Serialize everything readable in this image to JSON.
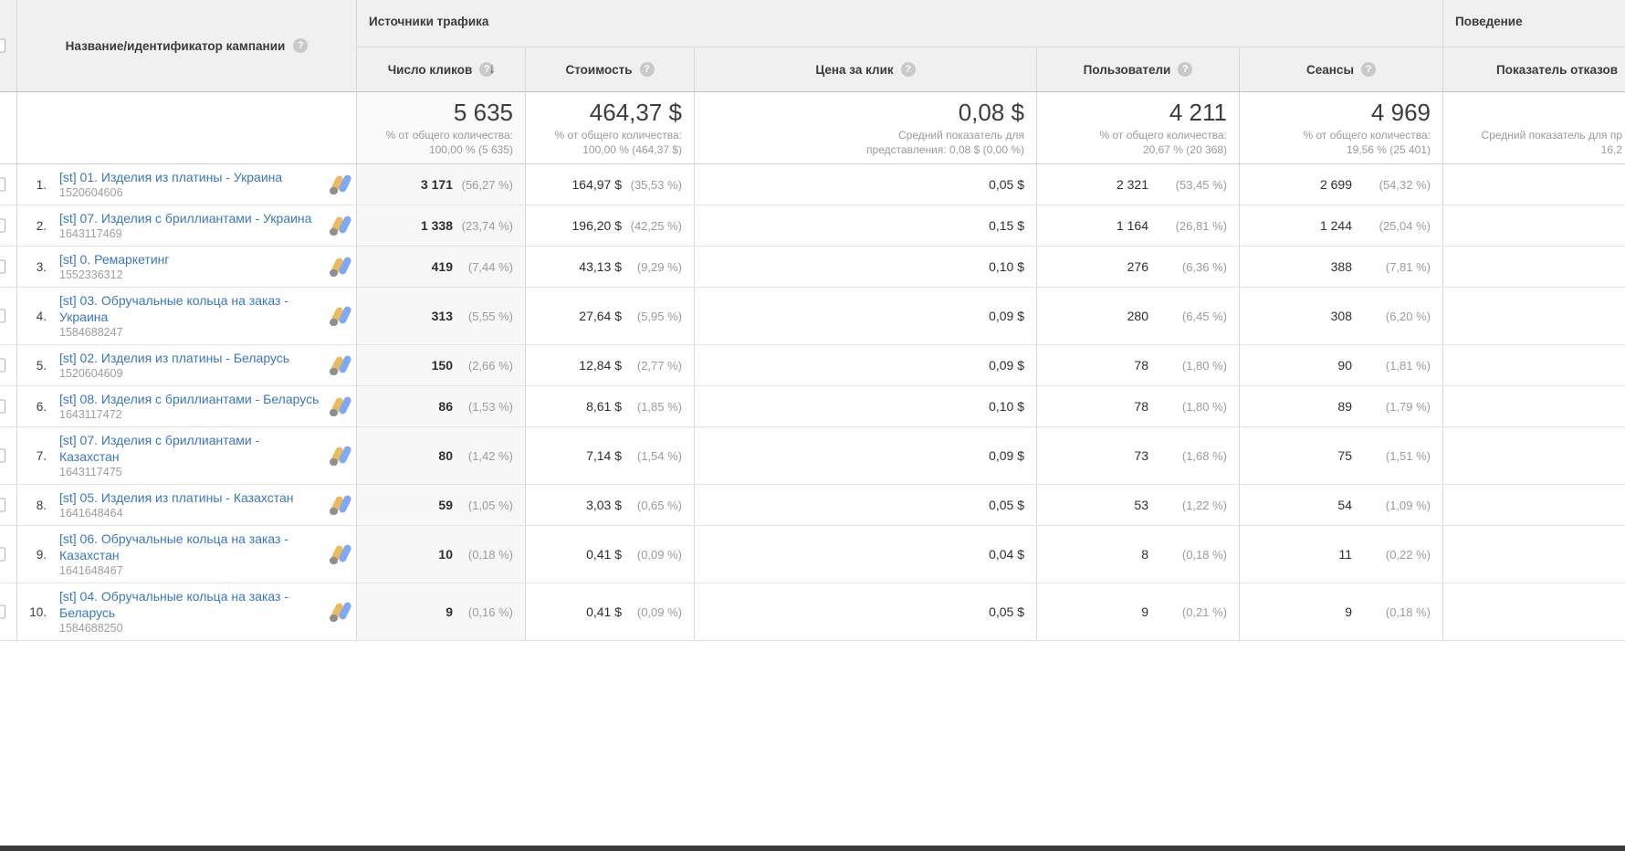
{
  "glyphs": {
    "help": "?",
    "sort_desc": "↓"
  },
  "header": {
    "name_column_label": "Название/идентификатор кампании",
    "groups": {
      "traffic_sources": "Источники трафика",
      "behavior": "Поведение"
    },
    "metrics": [
      {
        "label": "Число кликов"
      },
      {
        "label": "Стоимость"
      },
      {
        "label": "Цена за клик"
      },
      {
        "label": "Пользователи"
      },
      {
        "label": "Сеансы"
      },
      {
        "label": "Показатель отказов"
      }
    ]
  },
  "summary": {
    "clicks": {
      "value": "5 635",
      "sub1": "% от общего количества:",
      "sub2": "100,00 % (5 635)"
    },
    "cost": {
      "value": "464,37 $",
      "sub1": "% от общего количества:",
      "sub2": "100,00 % (464,37 $)"
    },
    "cpc": {
      "value": "0,08 $",
      "sub1": "Средний показатель для",
      "sub2": "представления: 0,08 $ (0,00 %)"
    },
    "users": {
      "value": "4 211",
      "sub1": "% от общего количества:",
      "sub2": "20,67 % (20 368)"
    },
    "sessions": {
      "value": "4 969",
      "sub1": "% от общего количества:",
      "sub2": "19,56 % (25 401)"
    },
    "bounce": {
      "value": "",
      "sub1": "Средний показатель для пр",
      "sub2": "16,2"
    }
  },
  "rows": [
    {
      "index": "1.",
      "name": "[st] 01. Изделия из платины - Украина",
      "id": "1520604606",
      "clicks": "3 171",
      "clicks_pct": "(56,27 %)",
      "cost": "164,97 $",
      "cost_pct": "(35,53 %)",
      "cpc": "0,05 $",
      "users": "2 321",
      "users_pct": "(53,45 %)",
      "sessions": "2 699",
      "sessions_pct": "(54,32 %)"
    },
    {
      "index": "2.",
      "name": "[st] 07. Изделия с бриллиантами - Украина",
      "id": "1643117469",
      "clicks": "1 338",
      "clicks_pct": "(23,74 %)",
      "cost": "196,20 $",
      "cost_pct": "(42,25 %)",
      "cpc": "0,15 $",
      "users": "1 164",
      "users_pct": "(26,81 %)",
      "sessions": "1 244",
      "sessions_pct": "(25,04 %)"
    },
    {
      "index": "3.",
      "name": "[st] 0. Ремаркетинг",
      "id": "1552336312",
      "clicks": "419",
      "clicks_pct": "(7,44 %)",
      "cost": "43,13 $",
      "cost_pct": "(9,29 %)",
      "cpc": "0,10 $",
      "users": "276",
      "users_pct": "(6,36 %)",
      "sessions": "388",
      "sessions_pct": "(7,81 %)"
    },
    {
      "index": "4.",
      "name": "[st] 03. Обручальные кольца на заказ - Украина",
      "id": "1584688247",
      "clicks": "313",
      "clicks_pct": "(5,55 %)",
      "cost": "27,64 $",
      "cost_pct": "(5,95 %)",
      "cpc": "0,09 $",
      "users": "280",
      "users_pct": "(6,45 %)",
      "sessions": "308",
      "sessions_pct": "(6,20 %)"
    },
    {
      "index": "5.",
      "name": "[st] 02. Изделия из платины - Беларусь",
      "id": "1520604609",
      "clicks": "150",
      "clicks_pct": "(2,66 %)",
      "cost": "12,84 $",
      "cost_pct": "(2,77 %)",
      "cpc": "0,09 $",
      "users": "78",
      "users_pct": "(1,80 %)",
      "sessions": "90",
      "sessions_pct": "(1,81 %)"
    },
    {
      "index": "6.",
      "name": "[st] 08. Изделия с бриллиантами - Беларусь",
      "id": "1643117472",
      "clicks": "86",
      "clicks_pct": "(1,53 %)",
      "cost": "8,61 $",
      "cost_pct": "(1,85 %)",
      "cpc": "0,10 $",
      "users": "78",
      "users_pct": "(1,80 %)",
      "sessions": "89",
      "sessions_pct": "(1,79 %)"
    },
    {
      "index": "7.",
      "name": "[st] 07. Изделия с бриллиантами - Казахстан",
      "id": "1643117475",
      "clicks": "80",
      "clicks_pct": "(1,42 %)",
      "cost": "7,14 $",
      "cost_pct": "(1,54 %)",
      "cpc": "0,09 $",
      "users": "73",
      "users_pct": "(1,68 %)",
      "sessions": "75",
      "sessions_pct": "(1,51 %)"
    },
    {
      "index": "8.",
      "name": "[st] 05. Изделия из платины - Казахстан",
      "id": "1641648464",
      "clicks": "59",
      "clicks_pct": "(1,05 %)",
      "cost": "3,03 $",
      "cost_pct": "(0,65 %)",
      "cpc": "0,05 $",
      "users": "53",
      "users_pct": "(1,22 %)",
      "sessions": "54",
      "sessions_pct": "(1,09 %)"
    },
    {
      "index": "9.",
      "name": "[st] 06. Обручальные кольца на заказ - Казахстан",
      "id": "1641648467",
      "clicks": "10",
      "clicks_pct": "(0,18 %)",
      "cost": "0,41 $",
      "cost_pct": "(0,09 %)",
      "cpc": "0,04 $",
      "users": "8",
      "users_pct": "(0,18 %)",
      "sessions": "11",
      "sessions_pct": "(0,22 %)"
    },
    {
      "index": "10.",
      "name": "[st] 04. Обручальные кольца на заказ - Беларусь",
      "id": "1584688250",
      "clicks": "9",
      "clicks_pct": "(0,16 %)",
      "cost": "0,41 $",
      "cost_pct": "(0,09 %)",
      "cpc": "0,05 $",
      "users": "9",
      "users_pct": "(0,21 %)",
      "sessions": "9",
      "sessions_pct": "(0,18 %)"
    }
  ],
  "colors": {
    "link": "#3b76bf",
    "header_bg": "#f0f0f0",
    "sorted_column_bg": "#f7f7f7",
    "ads_icon_blue": "#7fa9f2",
    "ads_icon_yellow": "#edb95e",
    "ads_icon_dot": "#8f8f8f"
  }
}
